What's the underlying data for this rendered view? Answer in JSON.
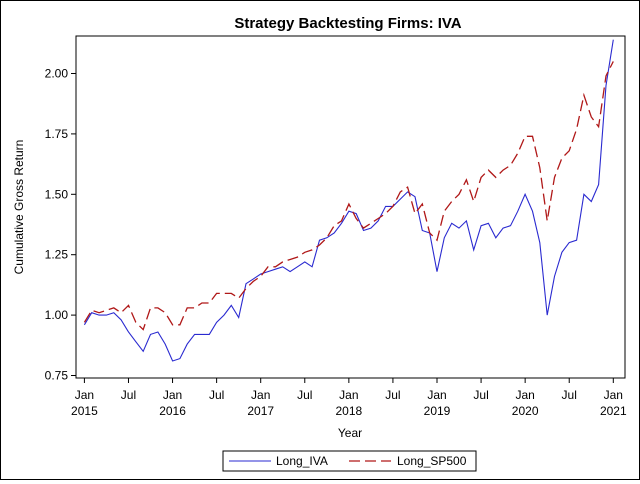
{
  "chart_data": {
    "type": "line",
    "title": "Strategy Backtesting  Firms: IVA",
    "xlabel": "Year",
    "ylabel": "Cumulative Gross Return",
    "ylim": [
      0.75,
      2.15
    ],
    "yticks": [
      "0.75",
      "1.00",
      "1.25",
      "1.50",
      "1.75",
      "2.00"
    ],
    "xticks": [
      {
        "month": "Jan",
        "year": "2015"
      },
      {
        "month": "Jul",
        "year": ""
      },
      {
        "month": "Jan",
        "year": "2016"
      },
      {
        "month": "Jul",
        "year": ""
      },
      {
        "month": "Jan",
        "year": "2017"
      },
      {
        "month": "Jul",
        "year": ""
      },
      {
        "month": "Jan",
        "year": "2018"
      },
      {
        "month": "Jul",
        "year": ""
      },
      {
        "month": "Jan",
        "year": "2019"
      },
      {
        "month": "Jul",
        "year": ""
      },
      {
        "month": "Jan",
        "year": "2020"
      },
      {
        "month": "Jul",
        "year": ""
      },
      {
        "month": "Jan",
        "year": "2021"
      }
    ],
    "x_start": "2015-01",
    "grid": false,
    "legend_position": "bottom",
    "series": [
      {
        "name": "Long_IVA",
        "color": "#2a2ad0",
        "dash": "solid",
        "values": [
          0.96,
          1.01,
          1.0,
          1.0,
          1.01,
          0.98,
          0.93,
          0.89,
          0.85,
          0.92,
          0.93,
          0.88,
          0.81,
          0.82,
          0.88,
          0.92,
          0.92,
          0.92,
          0.97,
          1.0,
          1.04,
          0.99,
          1.13,
          1.15,
          1.17,
          1.18,
          1.19,
          1.2,
          1.18,
          1.2,
          1.22,
          1.2,
          1.31,
          1.32,
          1.34,
          1.38,
          1.43,
          1.42,
          1.35,
          1.36,
          1.39,
          1.45,
          1.45,
          1.48,
          1.51,
          1.49,
          1.35,
          1.34,
          1.18,
          1.32,
          1.38,
          1.36,
          1.39,
          1.27,
          1.37,
          1.38,
          1.32,
          1.36,
          1.37,
          1.43,
          1.5,
          1.43,
          1.3,
          1.0,
          1.16,
          1.26,
          1.3,
          1.31,
          1.5,
          1.47,
          1.54,
          1.95,
          2.14
        ]
      },
      {
        "name": "Long_SP500",
        "color": "#b01818",
        "dash": "dashed",
        "values": [
          0.97,
          1.02,
          1.01,
          1.02,
          1.03,
          1.01,
          1.04,
          0.97,
          0.94,
          1.03,
          1.03,
          1.01,
          0.96,
          0.96,
          1.03,
          1.03,
          1.05,
          1.05,
          1.09,
          1.09,
          1.09,
          1.07,
          1.11,
          1.14,
          1.16,
          1.2,
          1.2,
          1.22,
          1.23,
          1.24,
          1.26,
          1.27,
          1.29,
          1.32,
          1.37,
          1.39,
          1.46,
          1.4,
          1.36,
          1.38,
          1.4,
          1.42,
          1.45,
          1.51,
          1.53,
          1.42,
          1.46,
          1.34,
          1.31,
          1.43,
          1.47,
          1.5,
          1.56,
          1.47,
          1.57,
          1.6,
          1.57,
          1.6,
          1.62,
          1.67,
          1.74,
          1.74,
          1.61,
          1.39,
          1.57,
          1.65,
          1.68,
          1.77,
          1.91,
          1.82,
          1.78,
          1.99,
          2.05
        ]
      }
    ]
  }
}
